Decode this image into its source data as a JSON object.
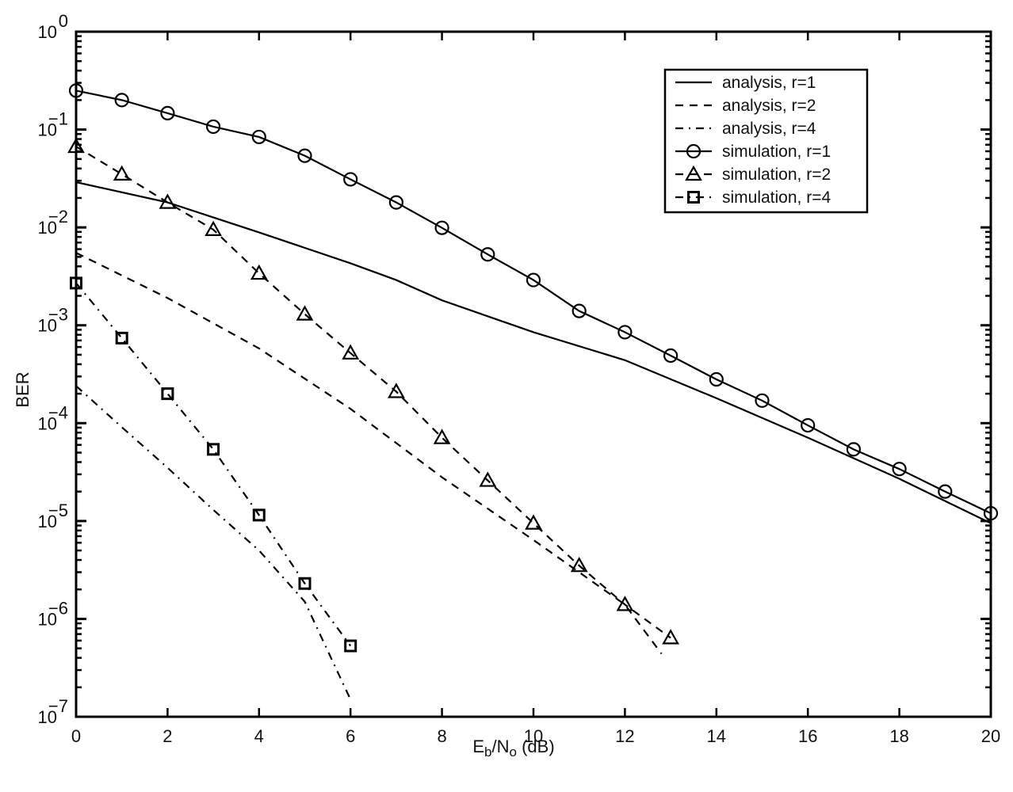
{
  "chart_data": {
    "type": "line",
    "title": "",
    "xlabel": "E_b/N_o (dB)",
    "xlabel_parts": {
      "main1": "E",
      "sub1": "b",
      "main2": "/N",
      "sub2": "o",
      "tail": " (dB)"
    },
    "ylabel": "BER",
    "xlim": [
      0,
      20
    ],
    "ylim": [
      1e-07,
      1
    ],
    "yscale": "log",
    "grid": false,
    "legend_position": "upper right",
    "x_ticks": [
      0,
      2,
      4,
      6,
      8,
      10,
      12,
      14,
      16,
      18,
      20
    ],
    "y_ticks": [
      {
        "base": "10",
        "exp": "0",
        "value": 1
      },
      {
        "base": "10",
        "exp": "−1",
        "value": 0.1
      },
      {
        "base": "10",
        "exp": "−2",
        "value": 0.01
      },
      {
        "base": "10",
        "exp": "−3",
        "value": 0.001
      },
      {
        "base": "10",
        "exp": "−4",
        "value": 0.0001
      },
      {
        "base": "10",
        "exp": "−5",
        "value": 1e-05
      },
      {
        "base": "10",
        "exp": "−6",
        "value": 1e-06
      },
      {
        "base": "10",
        "exp": "−7",
        "value": 1e-07
      }
    ],
    "series": [
      {
        "name": "analysis, r=1",
        "line": "solid",
        "marker": "none",
        "x": [
          0,
          2,
          4,
          6,
          7,
          8,
          10,
          12,
          14,
          16,
          18,
          20
        ],
        "values": [
          0.029,
          0.018,
          0.0089,
          0.0043,
          0.0029,
          0.0018,
          0.00085,
          0.00044,
          0.00018,
          7.1e-05,
          2.7e-05,
          9.5e-06
        ]
      },
      {
        "name": "analysis, r=2",
        "line": "dashed",
        "marker": "none",
        "x": [
          0,
          2,
          4,
          6,
          8,
          10,
          12,
          12.8
        ],
        "values": [
          0.0055,
          0.0019,
          0.00058,
          0.00014,
          2.8e-05,
          6.4e-06,
          1.4e-06,
          4.4e-07
        ]
      },
      {
        "name": "analysis, r=4",
        "line": "dashdot",
        "marker": "none",
        "x": [
          0,
          1,
          2,
          3,
          4,
          5,
          6
        ],
        "values": [
          0.00024,
          9.1e-05,
          3.5e-05,
          1.3e-05,
          5e-06,
          1.5e-06,
          1.5e-07
        ]
      },
      {
        "name": "simulation, r=1",
        "line": "solid",
        "marker": "circle",
        "x": [
          0,
          1,
          2,
          3,
          4,
          5,
          6,
          7,
          8,
          9,
          10,
          11,
          12,
          13,
          14,
          15,
          16,
          17,
          18,
          19,
          20
        ],
        "values": [
          0.25,
          0.2,
          0.147,
          0.107,
          0.084,
          0.054,
          0.031,
          0.018,
          0.0099,
          0.0053,
          0.0029,
          0.0014,
          0.00085,
          0.00049,
          0.00028,
          0.00017,
          9.5e-05,
          5.4e-05,
          3.4e-05,
          2e-05,
          1.2e-05
        ]
      },
      {
        "name": "simulation, r=2",
        "line": "dashed",
        "marker": "triangle",
        "x": [
          0,
          1,
          2,
          3,
          4,
          5,
          6,
          7,
          8,
          9,
          10,
          11,
          12,
          13
        ],
        "values": [
          0.067,
          0.035,
          0.018,
          0.0095,
          0.0034,
          0.0013,
          0.00052,
          0.00021,
          7.1e-05,
          2.6e-05,
          9.5e-06,
          3.5e-06,
          1.4e-06,
          6.4e-07
        ]
      },
      {
        "name": "simulation, r=4",
        "line": "dashdot",
        "marker": "square",
        "x": [
          0,
          1,
          2,
          3,
          4,
          5,
          6
        ],
        "values": [
          0.0027,
          0.00074,
          0.0002,
          5.4e-05,
          1.15e-05,
          2.3e-06,
          5.3e-07
        ]
      }
    ]
  },
  "colors": {
    "line": "#000000",
    "background": "#ffffff",
    "text": "#111111"
  }
}
